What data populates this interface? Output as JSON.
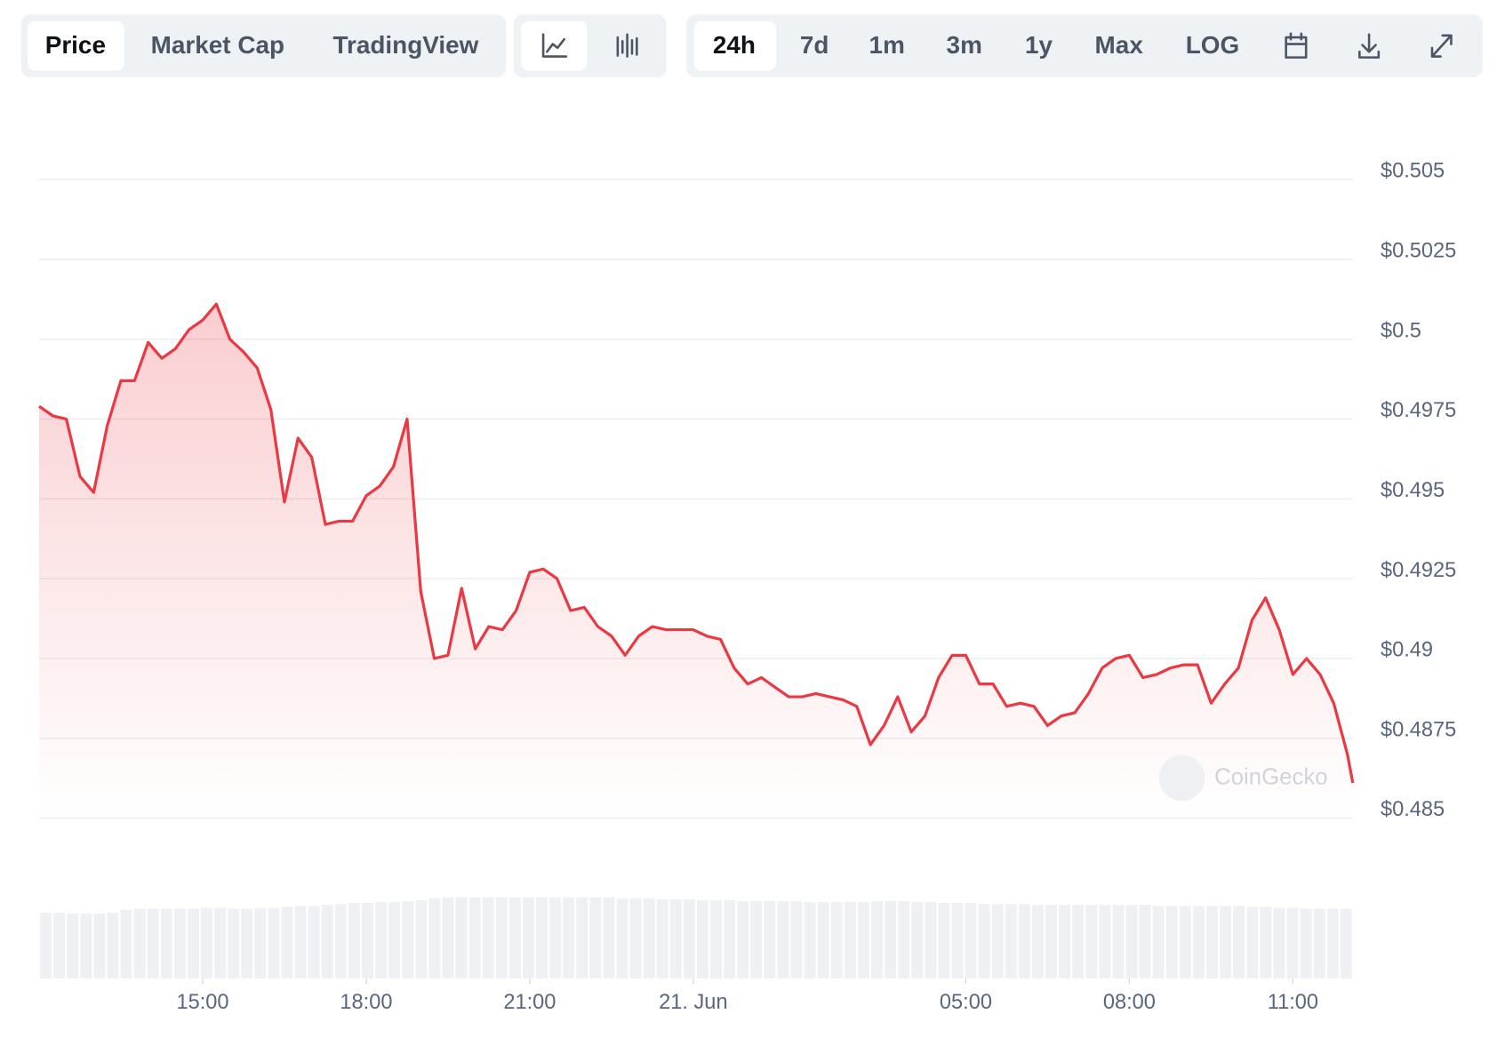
{
  "tabs": [
    "Price",
    "Market Cap",
    "TradingView"
  ],
  "ranges": [
    "24h",
    "7d",
    "1m",
    "3m",
    "1y",
    "Max",
    "LOG"
  ],
  "watermark": "CoinGecko",
  "chart_data": {
    "type": "line",
    "series": [
      {
        "color": "#ea3943",
        "x": [
          12,
          12.25,
          12.5,
          12.75,
          13,
          13.25,
          13.5,
          13.75,
          14,
          14.25,
          14.5,
          14.75,
          15,
          15.25,
          15.5,
          15.75,
          16,
          16.25,
          16.5,
          16.75,
          17,
          17.25,
          17.5,
          17.75,
          18,
          18.25,
          18.5,
          18.75,
          19,
          19.25,
          19.5,
          19.75,
          20,
          20.25,
          20.5,
          20.75,
          21,
          21.25,
          21.5,
          21.75,
          22,
          22.25,
          22.5,
          22.75,
          23,
          23.25,
          23.5,
          23.75,
          24,
          24.25,
          24.5,
          24.75,
          25,
          25.25,
          25.5,
          25.75,
          26,
          26.25,
          26.5,
          26.75,
          27,
          27.25,
          27.5,
          27.75,
          28,
          28.25,
          28.5,
          28.75,
          29,
          29.25,
          29.5,
          29.75,
          30,
          30.25,
          30.5,
          30.75,
          31,
          31.25,
          31.5,
          31.75,
          32,
          32.25,
          32.5,
          32.75,
          33,
          33.25,
          33.5,
          33.75,
          34,
          34.25,
          34.5,
          34.75,
          35,
          35.25,
          35.5,
          35.75,
          36,
          36.1
        ],
        "values": [
          0.4979,
          0.4976,
          0.4975,
          0.4957,
          0.4952,
          0.4973,
          0.4987,
          0.4987,
          0.4999,
          0.4994,
          0.4997,
          0.5003,
          0.5006,
          0.5011,
          0.5,
          0.4996,
          0.4991,
          0.4978,
          0.4949,
          0.4969,
          0.4963,
          0.4942,
          0.4943,
          0.4943,
          0.4951,
          0.4954,
          0.496,
          0.4975,
          0.4921,
          0.49,
          0.4901,
          0.4922,
          0.4903,
          0.491,
          0.4909,
          0.4915,
          0.4927,
          0.4928,
          0.4925,
          0.4915,
          0.4916,
          0.491,
          0.4907,
          0.4901,
          0.4907,
          0.491,
          0.4909,
          0.4909,
          0.4909,
          0.4907,
          0.4906,
          0.4897,
          0.4892,
          0.4894,
          0.4891,
          0.4888,
          0.4888,
          0.4889,
          0.4888,
          0.4887,
          0.4885,
          0.4873,
          0.4879,
          0.4888,
          0.4877,
          0.4882,
          0.4894,
          0.4901,
          0.4901,
          0.4892,
          0.4892,
          0.4885,
          0.4886,
          0.4885,
          0.4879,
          0.4882,
          0.4883,
          0.4889,
          0.4897,
          0.49,
          0.4901,
          0.4894,
          0.4895,
          0.4897,
          0.4898,
          0.4898,
          0.4886,
          0.4892,
          0.4897,
          0.4912,
          0.4919,
          0.4909,
          0.4895,
          0.49,
          0.4895,
          0.4886,
          0.487,
          0.4861
        ]
      }
    ],
    "volume": [
      69,
      69,
      68,
      68,
      68,
      69,
      72,
      73,
      73,
      73,
      73,
      73,
      74,
      74,
      73,
      73,
      74,
      74,
      75,
      76,
      76,
      77,
      78,
      79,
      79,
      80,
      80,
      81,
      82,
      84,
      85,
      85,
      85,
      85,
      85,
      85,
      85,
      85,
      85,
      85,
      85,
      85,
      85,
      84,
      84,
      84,
      83,
      83,
      83,
      82,
      82,
      82,
      81,
      81,
      81,
      81,
      81,
      80,
      80,
      80,
      80,
      80,
      81,
      81,
      81,
      80,
      80,
      79,
      79,
      79,
      78,
      78,
      78,
      78,
      77,
      77,
      77,
      77,
      77,
      77,
      77,
      77,
      77,
      76,
      76,
      76,
      76,
      76,
      76,
      76,
      75,
      75,
      74,
      74,
      73,
      73,
      73,
      73
    ],
    "xlim": [
      12,
      36.1
    ],
    "xticks": [
      {
        "value": 15,
        "label": "15:00"
      },
      {
        "value": 18,
        "label": "18:00"
      },
      {
        "value": 21,
        "label": "21:00"
      },
      {
        "value": 24,
        "label": "21. Jun"
      },
      {
        "value": 29,
        "label": "05:00"
      },
      {
        "value": 32,
        "label": "08:00"
      },
      {
        "value": 35,
        "label": "11:00"
      }
    ],
    "ylim": [
      0.485,
      0.505
    ],
    "yticks": [
      {
        "value": 0.505,
        "label": "$0.505"
      },
      {
        "value": 0.5025,
        "label": "$0.5025"
      },
      {
        "value": 0.5,
        "label": "$0.5"
      },
      {
        "value": 0.4975,
        "label": "$0.4975"
      },
      {
        "value": 0.495,
        "label": "$0.495"
      },
      {
        "value": 0.4925,
        "label": "$0.4925"
      },
      {
        "value": 0.49,
        "label": "$0.49"
      },
      {
        "value": 0.4875,
        "label": "$0.4875"
      },
      {
        "value": 0.485,
        "label": "$0.485"
      }
    ],
    "grid": true
  }
}
